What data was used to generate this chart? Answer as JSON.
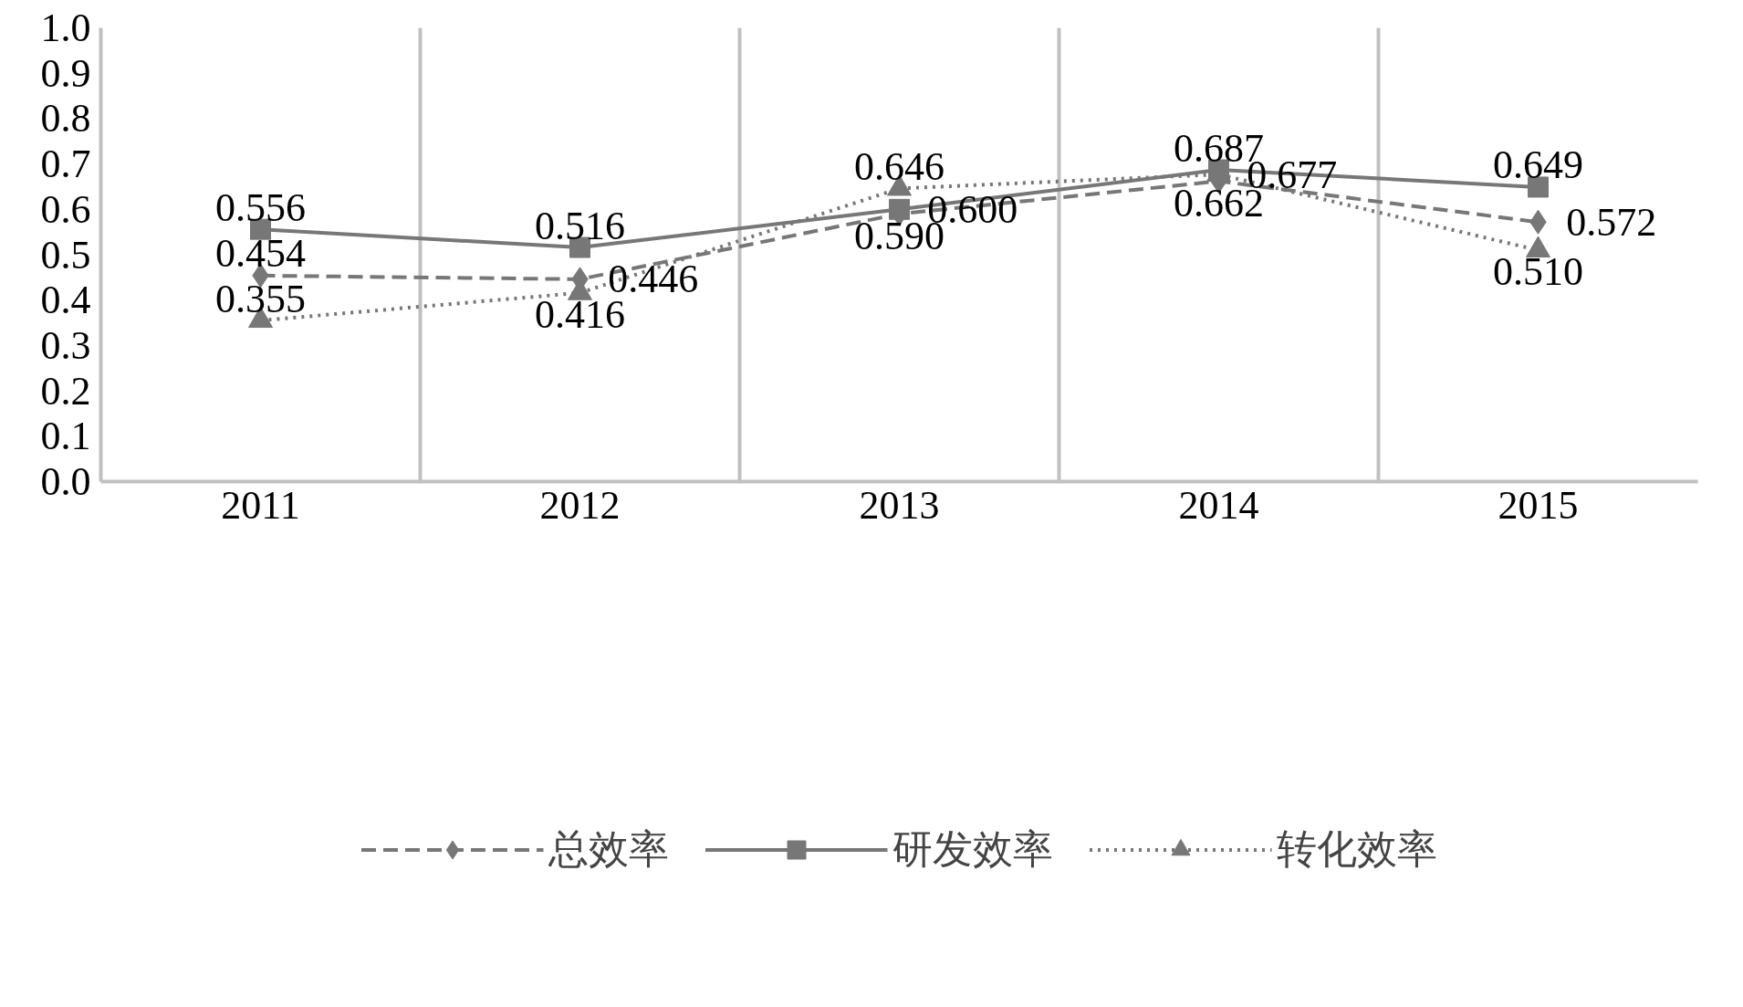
{
  "chart_data": {
    "type": "line",
    "categories": [
      "2011",
      "2012",
      "2013",
      "2014",
      "2015"
    ],
    "ylim": [
      0,
      1
    ],
    "yticks": [
      {
        "value": 0,
        "label": "0.0"
      },
      {
        "value": 0.1,
        "label": "0.1"
      },
      {
        "value": 0.2,
        "label": "0.2"
      },
      {
        "value": 0.3,
        "label": "0.3"
      },
      {
        "value": 0.4,
        "label": "0.4"
      },
      {
        "value": 0.5,
        "label": "0.5"
      },
      {
        "value": 0.6,
        "label": "0.6"
      },
      {
        "value": 0.7,
        "label": "0.7"
      },
      {
        "value": 0.8,
        "label": "0.8"
      },
      {
        "value": 0.9,
        "label": "0.9"
      },
      {
        "value": 1.0,
        "label": "1.0"
      }
    ],
    "grid": "x",
    "legend": "bottom",
    "series": [
      {
        "name": "总效率",
        "color": "#777777",
        "marker": "diamond",
        "line_style": "dashed",
        "values": [
          0.454,
          0.446,
          0.59,
          0.662,
          0.572
        ],
        "value_labels": [
          "0.454",
          "0.446",
          "0.590",
          "0.662",
          "0.572"
        ]
      },
      {
        "name": "研发效率",
        "color": "#777777",
        "marker": "square",
        "line_style": "solid",
        "values": [
          0.556,
          0.516,
          0.6,
          0.687,
          0.649
        ],
        "value_labels": [
          "0.556",
          "0.516",
          "0.600",
          "0.687",
          "0.649"
        ]
      },
      {
        "name": "转化效率",
        "color": "#777777",
        "marker": "triangle",
        "line_style": "dotted",
        "values": [
          0.355,
          0.416,
          0.646,
          0.677,
          0.51
        ],
        "value_labels": [
          "0.355",
          "0.416",
          "0.646",
          "0.677",
          "0.510"
        ]
      }
    ]
  }
}
